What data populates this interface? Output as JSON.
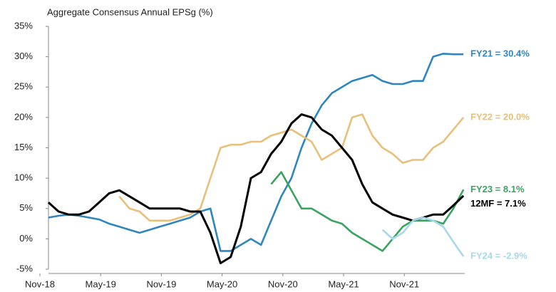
{
  "chart_data": {
    "type": "line",
    "title": "Aggregate Consensus Annual EPSg (%)",
    "categories": [
      "Nov-18",
      null,
      null,
      null,
      null,
      null,
      "May-19",
      null,
      null,
      null,
      null,
      null,
      "Nov-19",
      null,
      null,
      null,
      null,
      null,
      "May-20",
      null,
      null,
      null,
      null,
      null,
      "Nov-20",
      null,
      null,
      null,
      null,
      null,
      "May-21",
      null,
      null,
      null,
      null,
      null,
      "Nov-21",
      null,
      null,
      null,
      null,
      null
    ],
    "series": [
      {
        "name": "FY21 = 30.4%",
        "color": "#2e86c1",
        "values": [
          3.5,
          3.8,
          4,
          3.8,
          3.5,
          3.2,
          2.5,
          2,
          1.5,
          1,
          1.5,
          2,
          2.5,
          3,
          3.5,
          4.5,
          5,
          -2,
          -2,
          -1,
          0,
          -1,
          3,
          7,
          10,
          15,
          19,
          22,
          24,
          25,
          26,
          26.5,
          27,
          26,
          25.5,
          25.5,
          26,
          26,
          30,
          30.5,
          30.4,
          30.4
        ]
      },
      {
        "name": "FY22 = 20.0%",
        "color": "#e8c07a",
        "values": [
          null,
          null,
          null,
          null,
          null,
          null,
          null,
          7,
          5,
          4.5,
          3,
          3,
          3,
          3.5,
          4,
          5,
          10,
          15,
          15.5,
          15.5,
          16,
          16,
          17,
          17.5,
          18,
          17,
          16,
          13,
          14,
          15,
          20,
          20.5,
          17,
          15,
          14,
          12.5,
          13,
          13,
          15,
          16,
          18,
          20
        ]
      },
      {
        "name": "FY23 = 8.1%",
        "color": "#3aa35f",
        "values": [
          null,
          null,
          null,
          null,
          null,
          null,
          null,
          null,
          null,
          null,
          null,
          null,
          null,
          null,
          null,
          null,
          null,
          null,
          null,
          null,
          null,
          null,
          9,
          11,
          8,
          5,
          5,
          4,
          3,
          2.5,
          1,
          0,
          -1,
          -2,
          0,
          2,
          3,
          3,
          3,
          2.5,
          5,
          8.1
        ]
      },
      {
        "name": "12MF = 7.1%",
        "color": "#000000",
        "values": [
          6,
          4.5,
          4,
          4,
          4.5,
          6,
          7.5,
          8,
          7,
          6,
          5,
          5,
          5,
          5,
          4.5,
          4.5,
          1,
          -4,
          -3,
          2,
          10,
          11,
          14,
          16,
          19,
          20.5,
          20,
          18,
          17,
          15,
          13,
          9,
          6,
          5,
          4,
          3.5,
          3,
          3.5,
          4,
          4,
          5.5,
          7.1
        ]
      },
      {
        "name": "FY24 = -2.9%",
        "color": "#a8d8ea",
        "values": [
          null,
          null,
          null,
          null,
          null,
          null,
          null,
          null,
          null,
          null,
          null,
          null,
          null,
          null,
          null,
          null,
          null,
          null,
          null,
          null,
          null,
          null,
          null,
          null,
          null,
          null,
          null,
          null,
          null,
          null,
          null,
          null,
          null,
          1.5,
          0,
          1,
          3,
          3.5,
          3,
          2,
          -0.5,
          -2.9
        ]
      }
    ],
    "ylim": [
      -5,
      35
    ],
    "yticks": [
      {
        "value": -5,
        "label": "-5%"
      },
      {
        "value": 0,
        "label": "0%"
      },
      {
        "value": 5,
        "label": "5%"
      },
      {
        "value": 10,
        "label": "10%"
      },
      {
        "value": 15,
        "label": "15%"
      },
      {
        "value": 20,
        "label": "20%"
      },
      {
        "value": 25,
        "label": "25%"
      },
      {
        "value": 30,
        "label": "30%"
      },
      {
        "value": 35,
        "label": "35%"
      }
    ],
    "grid": false
  }
}
